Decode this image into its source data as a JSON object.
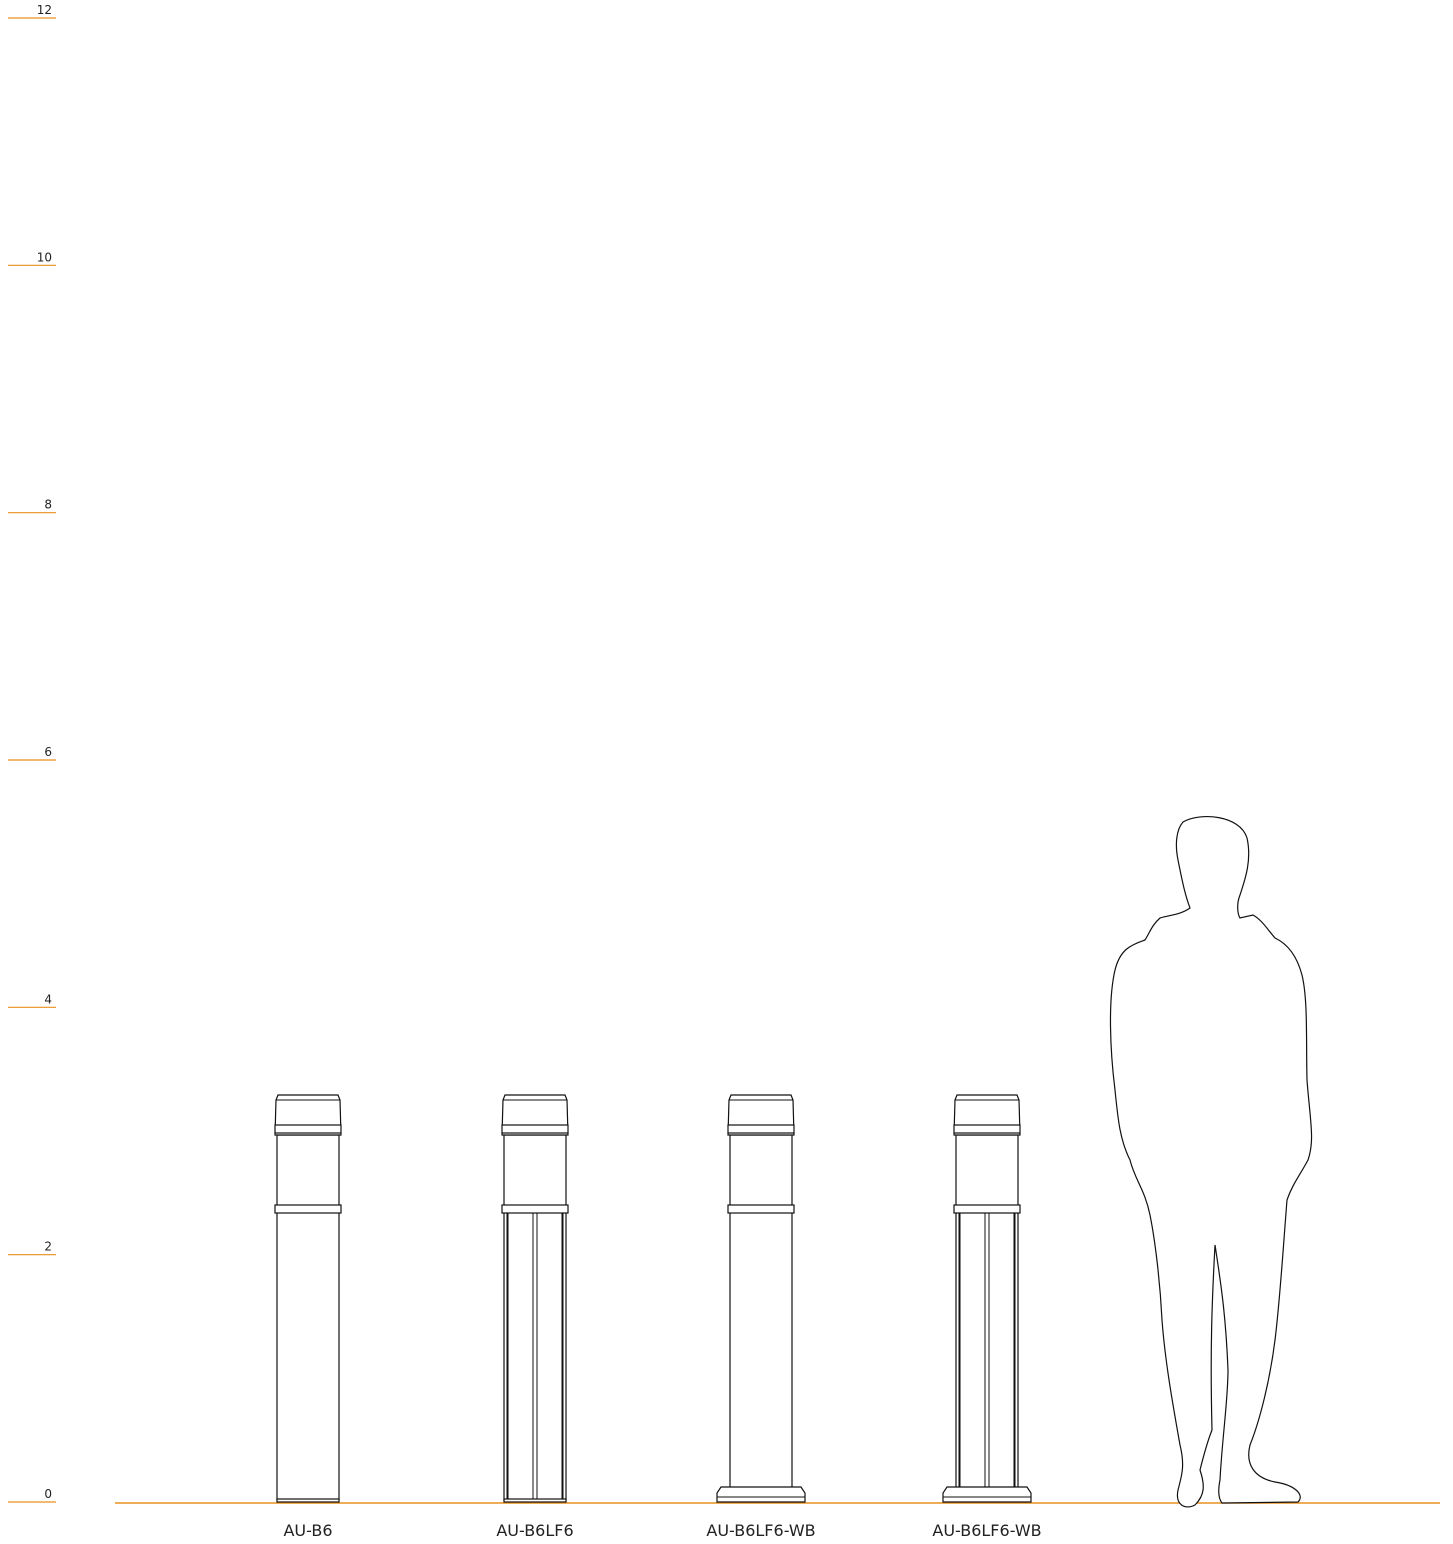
{
  "scale": {
    "ticks": [
      0,
      2,
      4,
      6,
      8,
      10,
      12
    ]
  },
  "products": [
    {
      "label": "AU-B6"
    },
    {
      "label": "AU-B6LF6"
    },
    {
      "label": "AU-B6LF6-WB"
    },
    {
      "label": "AU-B6LF6-WB"
    }
  ]
}
